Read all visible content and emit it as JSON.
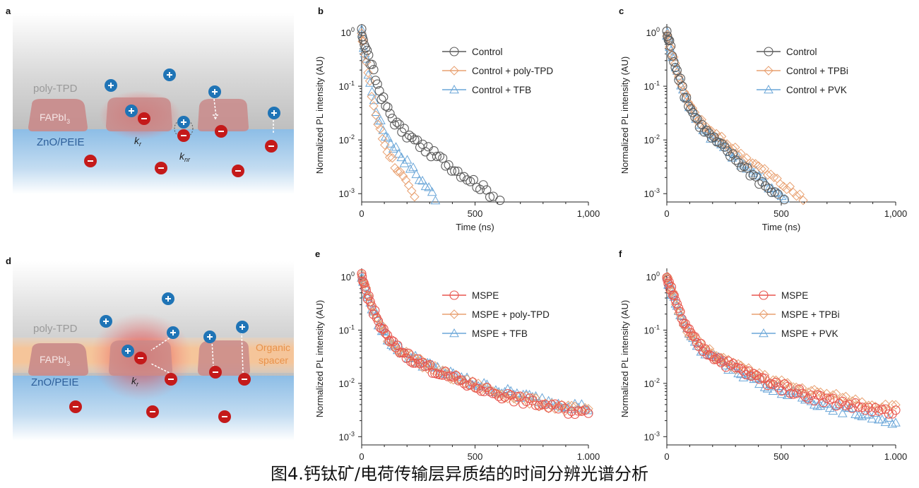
{
  "caption": "图4.钙钛矿/电荷传输层异质结的时间分辨光谱分析",
  "schematics": [
    {
      "panel": "a",
      "layers": {
        "top": "poly-TPD",
        "perovskite": "FAPbI3",
        "bottom": "ZnO/PEIE"
      },
      "rates": [
        "k_r",
        "k_nr"
      ],
      "colors": {
        "top_gray": "#c9c9c9",
        "bottom_blue": "#9ec8e8",
        "grain": "#c98a8a",
        "glow": "#e24c4c",
        "hole": "#1f74b6",
        "electron": "#c41a1a"
      }
    },
    {
      "panel": "d",
      "layers": {
        "top": "poly-TPD",
        "perovskite": "FAPbI3",
        "bottom": "ZnO/PEIE",
        "spacer": "Organic spacer"
      },
      "rates": [
        "k_r"
      ],
      "colors": {
        "spacer": "#f7c9a0",
        "spacer_text": "#e8924a"
      }
    }
  ],
  "chart_data": [
    {
      "panel": "b",
      "type": "scatter",
      "xlabel": "Time (ns)",
      "ylabel": "Normalized PL intensity (AU)",
      "xlim": [
        0,
        1000
      ],
      "ylim": [
        0.0007,
        1.2
      ],
      "yscale": "log",
      "xticks": [
        0,
        500,
        1000
      ],
      "xticklabels": [
        "0",
        "500",
        "1,000"
      ],
      "yticks": [
        1,
        0.1,
        0.01,
        0.001
      ],
      "legend_position": "top-right",
      "series": [
        {
          "name": "Control",
          "marker": "circle",
          "color": "#5a5a5a",
          "tau1": 28,
          "tau2": 150,
          "amp2": 0.045,
          "tmax": 610,
          "points": [
            [
              0,
              1.0
            ],
            [
              25,
              0.3
            ],
            [
              50,
              0.12
            ],
            [
              100,
              0.035
            ],
            [
              200,
              0.009
            ],
            [
              300,
              0.004
            ],
            [
              400,
              0.0022
            ],
            [
              500,
              0.0013
            ],
            [
              600,
              0.0009
            ]
          ]
        },
        {
          "name": "Control + poly-TPD",
          "marker": "diamond",
          "color": "#e8a070",
          "tau1": 15,
          "tau2": 60,
          "amp2": 0.04,
          "tmax": 260,
          "points": [
            [
              0,
              0.9
            ],
            [
              25,
              0.06
            ],
            [
              50,
              0.02
            ],
            [
              100,
              0.007
            ],
            [
              150,
              0.0032
            ],
            [
              200,
              0.0015
            ],
            [
              250,
              0.0008
            ]
          ]
        },
        {
          "name": "Control + TFB",
          "marker": "triangle",
          "color": "#6aa6d8",
          "tau1": 16,
          "tau2": 85,
          "amp2": 0.04,
          "tmax": 340,
          "points": [
            [
              0,
              0.8
            ],
            [
              25,
              0.07
            ],
            [
              50,
              0.025
            ],
            [
              100,
              0.012
            ],
            [
              200,
              0.0035
            ],
            [
              300,
              0.0012
            ],
            [
              340,
              0.0009
            ]
          ]
        }
      ]
    },
    {
      "panel": "c",
      "type": "scatter",
      "xlabel": "Time (ns)",
      "ylabel": "Normalized PL intensity (AU)",
      "xlim": [
        0,
        1000
      ],
      "ylim": [
        0.0007,
        1.2
      ],
      "yscale": "log",
      "xticks": [
        0,
        500,
        1000
      ],
      "xticklabels": [
        "0",
        "500",
        "1,000"
      ],
      "yticks": [
        1,
        0.1,
        0.01,
        0.001
      ],
      "legend_position": "top-right",
      "series": [
        {
          "name": "Control",
          "marker": "circle",
          "color": "#5a5a5a",
          "tau1": 25,
          "tau2": 115,
          "amp2": 0.06,
          "tmax": 600,
          "points": [
            [
              0,
              1.0
            ],
            [
              25,
              0.35
            ],
            [
              50,
              0.15
            ],
            [
              100,
              0.04
            ],
            [
              200,
              0.008
            ],
            [
              300,
              0.003
            ],
            [
              400,
              0.0015
            ],
            [
              500,
              0.001
            ]
          ]
        },
        {
          "name": "Control + TPBi",
          "marker": "diamond",
          "color": "#e8a070",
          "tau1": 25,
          "tau2": 140,
          "amp2": 0.055,
          "tmax": 640,
          "points": [
            [
              0,
              1.0
            ],
            [
              50,
              0.15
            ],
            [
              100,
              0.045
            ],
            [
              200,
              0.01
            ],
            [
              300,
              0.004
            ],
            [
              400,
              0.002
            ],
            [
              500,
              0.0015
            ],
            [
              600,
              0.0011
            ]
          ]
        },
        {
          "name": "Control + PVK",
          "marker": "triangle",
          "color": "#6aa6d8",
          "tau1": 25,
          "tau2": 120,
          "amp2": 0.06,
          "tmax": 560,
          "points": [
            [
              0,
              1.0
            ],
            [
              50,
              0.15
            ],
            [
              100,
              0.04
            ],
            [
              200,
              0.009
            ],
            [
              300,
              0.0035
            ],
            [
              400,
              0.0018
            ],
            [
              500,
              0.0012
            ]
          ]
        }
      ]
    },
    {
      "panel": "e",
      "type": "scatter",
      "xlabel": "",
      "ylabel": "Normalized PL intensity (AU)",
      "xlim": [
        0,
        1000
      ],
      "ylim": [
        0.0007,
        1.2
      ],
      "yscale": "log",
      "xticks": [
        0,
        500,
        1000
      ],
      "xticklabels": [
        "0",
        "500",
        "1,000"
      ],
      "yticks": [
        1,
        0.1,
        0.01,
        0.001
      ],
      "legend_position": "top-right",
      "series": [
        {
          "name": "MSPE",
          "marker": "circle",
          "color": "#e8554e",
          "tau1": 30,
          "amp2": 0.09,
          "tau2": 150,
          "amp3": 0.012,
          "tau3": 650,
          "tmax": 1000,
          "points": [
            [
              0,
              1.0
            ],
            [
              50,
              0.12
            ],
            [
              100,
              0.04
            ],
            [
              200,
              0.017
            ],
            [
              300,
              0.011
            ],
            [
              500,
              0.0055
            ],
            [
              700,
              0.0032
            ],
            [
              1000,
              0.0016
            ]
          ]
        },
        {
          "name": "MSPE + poly-TPD",
          "marker": "diamond",
          "color": "#e8a070",
          "tau1": 30,
          "amp2": 0.09,
          "tau2": 150,
          "amp3": 0.013,
          "tau3": 650,
          "tmax": 1000,
          "points": [
            [
              0,
              0.9
            ],
            [
              100,
              0.042
            ],
            [
              300,
              0.012
            ],
            [
              500,
              0.006
            ],
            [
              1000,
              0.0017
            ]
          ]
        },
        {
          "name": "MSPE + TFB",
          "marker": "triangle",
          "color": "#6aa6d8",
          "tau1": 30,
          "amp2": 0.09,
          "tau2": 150,
          "amp3": 0.014,
          "tau3": 700,
          "tmax": 1000,
          "points": [
            [
              0,
              0.9
            ],
            [
              100,
              0.045
            ],
            [
              300,
              0.013
            ],
            [
              500,
              0.007
            ],
            [
              1000,
              0.002
            ]
          ]
        }
      ]
    },
    {
      "panel": "f",
      "type": "scatter",
      "xlabel": "Time (ns)",
      "ylabel": "Normalized PL intensity (AU)",
      "xlim": [
        0,
        1000
      ],
      "ylim": [
        0.0007,
        1.2
      ],
      "yscale": "log",
      "xticks": [
        0,
        500,
        1000
      ],
      "xticklabels": [
        "0",
        "500",
        "1,000"
      ],
      "yticks": [
        1,
        0.1,
        0.01,
        0.001
      ],
      "legend_position": "top-right",
      "series": [
        {
          "name": "MSPE",
          "marker": "circle",
          "color": "#e8554e",
          "tau1": 30,
          "amp2": 0.09,
          "tau2": 150,
          "amp3": 0.012,
          "tau3": 650,
          "tmax": 1000,
          "points": [
            [
              0,
              1.0
            ],
            [
              50,
              0.12
            ],
            [
              100,
              0.04
            ],
            [
              200,
              0.017
            ],
            [
              300,
              0.011
            ],
            [
              500,
              0.0055
            ],
            [
              700,
              0.0032
            ],
            [
              1000,
              0.0016
            ]
          ]
        },
        {
          "name": "MSPE + TPBi",
          "marker": "diamond",
          "color": "#e8a070",
          "tau1": 30,
          "amp2": 0.09,
          "tau2": 150,
          "amp3": 0.014,
          "tau3": 700,
          "tmax": 1000,
          "points": [
            [
              0,
              0.9
            ],
            [
              100,
              0.045
            ],
            [
              300,
              0.013
            ],
            [
              500,
              0.007
            ],
            [
              1000,
              0.002
            ]
          ]
        },
        {
          "name": "MSPE + PVK",
          "marker": "triangle",
          "color": "#6aa6d8",
          "tau1": 30,
          "amp2": 0.09,
          "tau2": 150,
          "amp3": 0.01,
          "tau3": 600,
          "tmax": 1000,
          "points": [
            [
              0,
              0.9
            ],
            [
              100,
              0.038
            ],
            [
              300,
              0.01
            ],
            [
              500,
              0.0045
            ],
            [
              1000,
              0.0012
            ]
          ]
        }
      ]
    }
  ]
}
